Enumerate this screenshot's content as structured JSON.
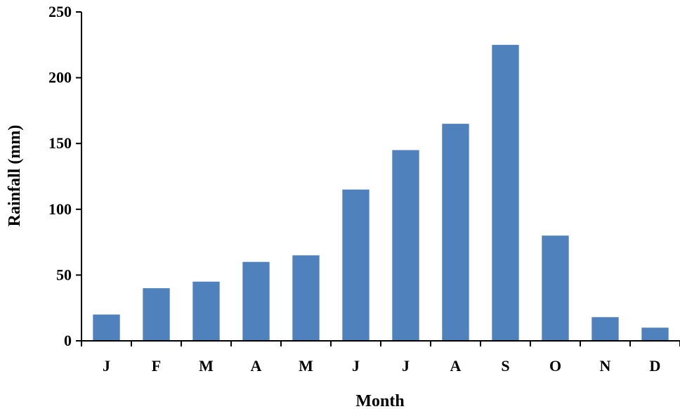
{
  "chart_data": {
    "type": "bar",
    "title": "",
    "xlabel": "Month",
    "ylabel": "Rainfall (mm)",
    "categories": [
      "J",
      "F",
      "M",
      "A",
      "M",
      "J",
      "J",
      "A",
      "S",
      "O",
      "N",
      "D"
    ],
    "values": [
      20,
      40,
      45,
      60,
      65,
      115,
      145,
      165,
      225,
      80,
      18,
      10
    ],
    "ylim": [
      0,
      250
    ],
    "yticks": [
      "0",
      "50",
      "100",
      "150",
      "200",
      "250"
    ],
    "grid": false,
    "legend": "none",
    "bar_color": "#4F81BD",
    "axis_color": "#000000"
  }
}
